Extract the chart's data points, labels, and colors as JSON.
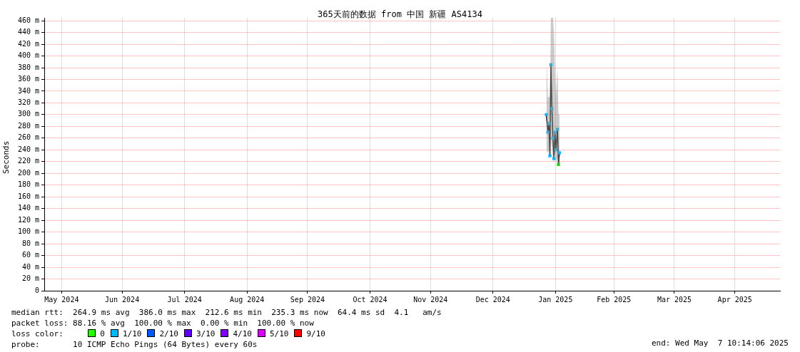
{
  "chart_data": {
    "type": "line",
    "title": "365天前的数据 from 中国 新疆 AS4134",
    "ylabel": "Seconds",
    "xlim": [
      "2024-05-07T10:00",
      "2025-05-07T10:00"
    ],
    "xticks": [
      {
        "value": "2024-05-16",
        "label": "May 2024"
      },
      {
        "value": "2024-06-15",
        "label": "Jun 2024"
      },
      {
        "value": "2024-07-16",
        "label": "Jul 2024"
      },
      {
        "value": "2024-08-16",
        "label": "Aug 2024"
      },
      {
        "value": "2024-09-15",
        "label": "Sep 2024"
      },
      {
        "value": "2024-10-16",
        "label": "Oct 2024"
      },
      {
        "value": "2024-11-15",
        "label": "Nov 2024"
      },
      {
        "value": "2024-12-16",
        "label": "Dec 2024"
      },
      {
        "value": "2025-01-16",
        "label": "Jan 2025"
      },
      {
        "value": "2025-02-14",
        "label": "Feb 2025"
      },
      {
        "value": "2025-03-16",
        "label": "Mar 2025"
      },
      {
        "value": "2025-04-15",
        "label": "Apr 2025"
      }
    ],
    "ylim": [
      0,
      465
    ],
    "yticks": [
      0,
      {
        "value": 20,
        "label": "20 m"
      },
      {
        "value": 40,
        "label": "40 m"
      },
      {
        "value": 60,
        "label": "60 m"
      },
      {
        "value": 80,
        "label": "80 m"
      },
      {
        "value": 100,
        "label": "100 m"
      },
      {
        "value": 120,
        "label": "120 m"
      },
      {
        "value": 140,
        "label": "140 m"
      },
      {
        "value": 160,
        "label": "160 m"
      },
      {
        "value": 180,
        "label": "180 m"
      },
      {
        "value": 200,
        "label": "200 m"
      },
      {
        "value": 220,
        "label": "220 m"
      },
      {
        "value": 240,
        "label": "240 m"
      },
      {
        "value": 260,
        "label": "260 m"
      },
      {
        "value": 280,
        "label": "280 m"
      },
      {
        "value": 300,
        "label": "300 m"
      },
      {
        "value": 320,
        "label": "320 m"
      },
      {
        "value": 340,
        "label": "340 m"
      },
      {
        "value": 360,
        "label": "360 m"
      },
      {
        "value": 380,
        "label": "380 m"
      },
      {
        "value": 400,
        "label": "400 m"
      },
      {
        "value": 420,
        "label": "420 m"
      },
      {
        "value": 440,
        "label": "440 m"
      },
      {
        "value": 460,
        "label": "460 m"
      }
    ],
    "grid": true,
    "legend": "bottom",
    "legend_title": "loss color:",
    "marker": "square",
    "series": [
      {
        "color": "#000000",
        "x": [
          "2025-01-11T12:00",
          "2025-01-12T06:00",
          "2025-01-12T18:00",
          "2025-01-13T06:00",
          "2025-01-13T18:00",
          "2025-01-14T06:00",
          "2025-01-14T18:00",
          "2025-01-15T06:00",
          "2025-01-15T18:00",
          "2025-01-16T06:00",
          "2025-01-17T00:00",
          "2025-01-17T12:00",
          "2025-01-18T00:00"
        ],
        "values": [
          300,
          270,
          285,
          230,
          385,
          310,
          260,
          225,
          270,
          240,
          275,
          215,
          235
        ],
        "lower": [
          240,
          235,
          240,
          225,
          260,
          245,
          225,
          220,
          235,
          220,
          225,
          212,
          225
        ],
        "upper": [
          400,
          330,
          330,
          330,
          465,
          465,
          465,
          440,
          380,
          330,
          380,
          300,
          300
        ],
        "colors": [
          "#00b8ff",
          "#00b8ff",
          "#00b8ff",
          "#00b8ff",
          "#00b8ff",
          "#00b8ff",
          "#00b8ff",
          "#00b8ff",
          "#00b8ff",
          "#00b8ff",
          "#00b8ff",
          "#00e000",
          "#00b8ff"
        ]
      },
      {
        "type": "scatter",
        "name": "0",
        "color": "#26ff00"
      },
      {
        "type": "scatter",
        "name": "1/10",
        "color": "#00b8ff"
      },
      {
        "type": "scatter",
        "name": "2/10",
        "color": "#0059ff"
      },
      {
        "type": "scatter",
        "name": "3/10",
        "color": "#5e00ff"
      },
      {
        "type": "scatter",
        "name": "4/10",
        "color": "#7e00ff"
      },
      {
        "type": "scatter",
        "name": "5/10",
        "color": "#dd00ff"
      },
      {
        "type": "scatter",
        "name": "9/10",
        "color": "#ff0000"
      }
    ],
    "annotations": [
      "median rtt:  264.9 ms avg  386.0 ms max  212.6 ms min  235.3 ms now  64.4 ms sd  4.1   am/s",
      "packet loss: 88.16 % avg  100.00 % max  0.00 % min  100.00 % now",
      "probe:       10 ICMP Echo Pings (64 Bytes) every 60s",
      "end: Wed May  7 10:14:06 2025"
    ]
  }
}
